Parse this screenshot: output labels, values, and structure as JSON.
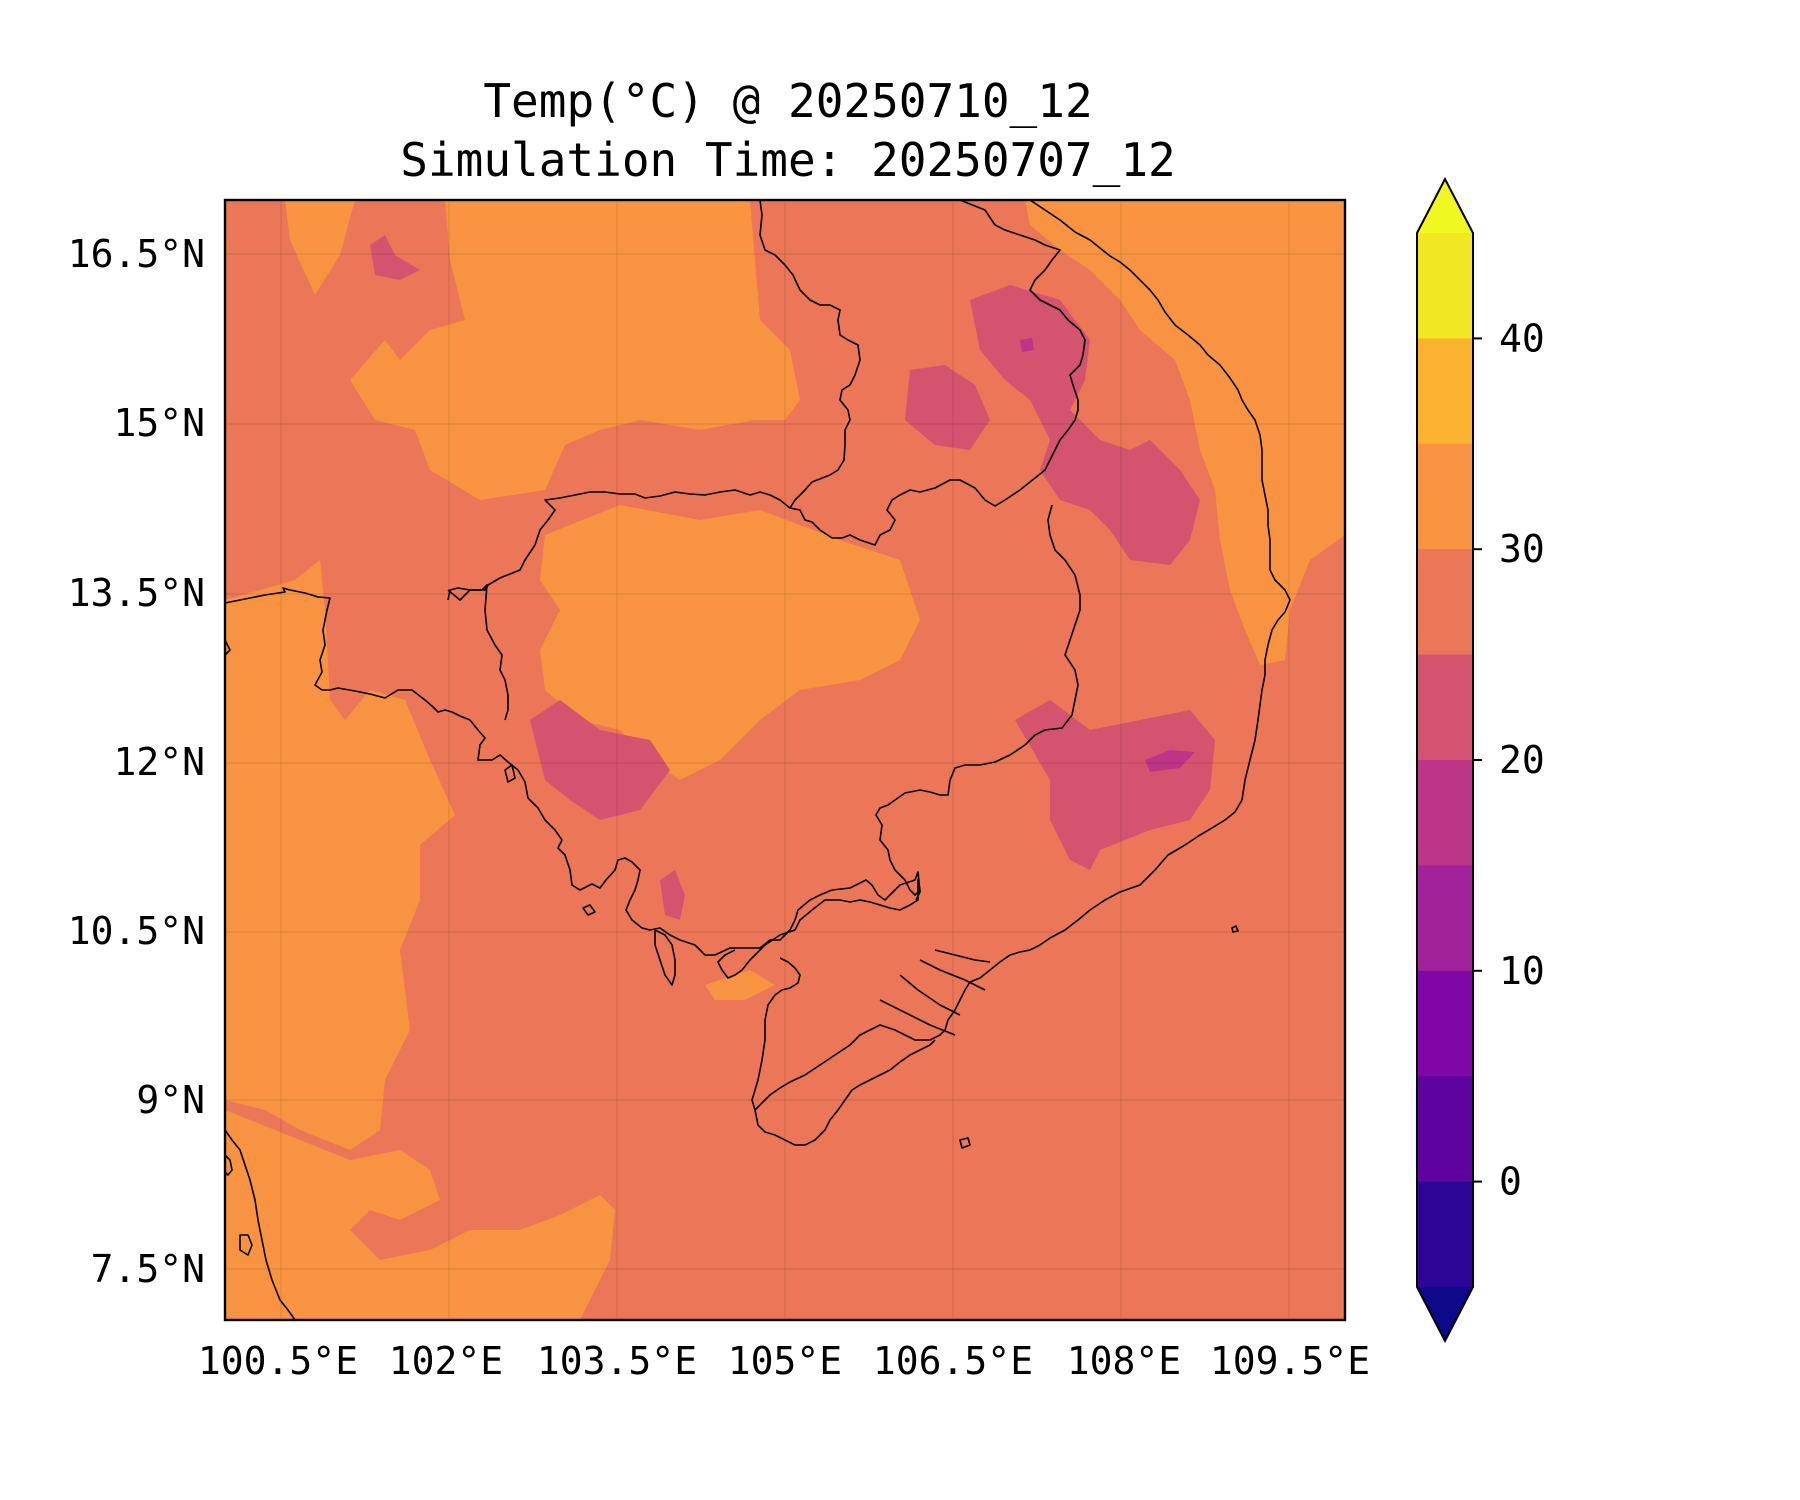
{
  "title_line_1": "Temp(°C) @ 20250710_12",
  "title_line_2": "Simulation Time: 20250707_12",
  "map": {
    "type": "filled-contour map",
    "variable": "Temp(°C)",
    "extent_lon": [
      100.0,
      110.0
    ],
    "extent_lat": [
      7.0,
      17.0
    ],
    "background_color": "#eb7658",
    "grid": true,
    "lon_ticks": [
      "100.5°E",
      "102°E",
      "103.5°E",
      "105°E",
      "106.5°E",
      "108°E",
      "109.5°E"
    ],
    "lat_ticks": [
      "16.5°N",
      "15°N",
      "13.5°N",
      "12°N",
      "10.5°N",
      "9°N",
      "7.5°N"
    ]
  },
  "colorbar": {
    "ticks": [
      "40",
      "30",
      "20",
      "10",
      "0"
    ],
    "bands": [
      {
        "range": [
          40,
          45
        ],
        "color": "#f1e722"
      },
      {
        "range": [
          35,
          40
        ],
        "color": "#fbb32f"
      },
      {
        "range": [
          30,
          35
        ],
        "color": "#f89441"
      },
      {
        "range": [
          25,
          30
        ],
        "color": "#eb7658"
      },
      {
        "range": [
          20,
          25
        ],
        "color": "#d4536e"
      },
      {
        "range": [
          15,
          20
        ],
        "color": "#bc3587"
      },
      {
        "range": [
          10,
          15
        ],
        "color": "#a12299"
      },
      {
        "range": [
          5,
          10
        ],
        "color": "#8106a7"
      },
      {
        "range": [
          0,
          5
        ],
        "color": "#5f03a0"
      },
      {
        "range": [
          -5,
          0
        ],
        "color": "#2c0496"
      }
    ],
    "extend_top_color": "#eff821",
    "extend_bottom_color": "#0d0887"
  }
}
